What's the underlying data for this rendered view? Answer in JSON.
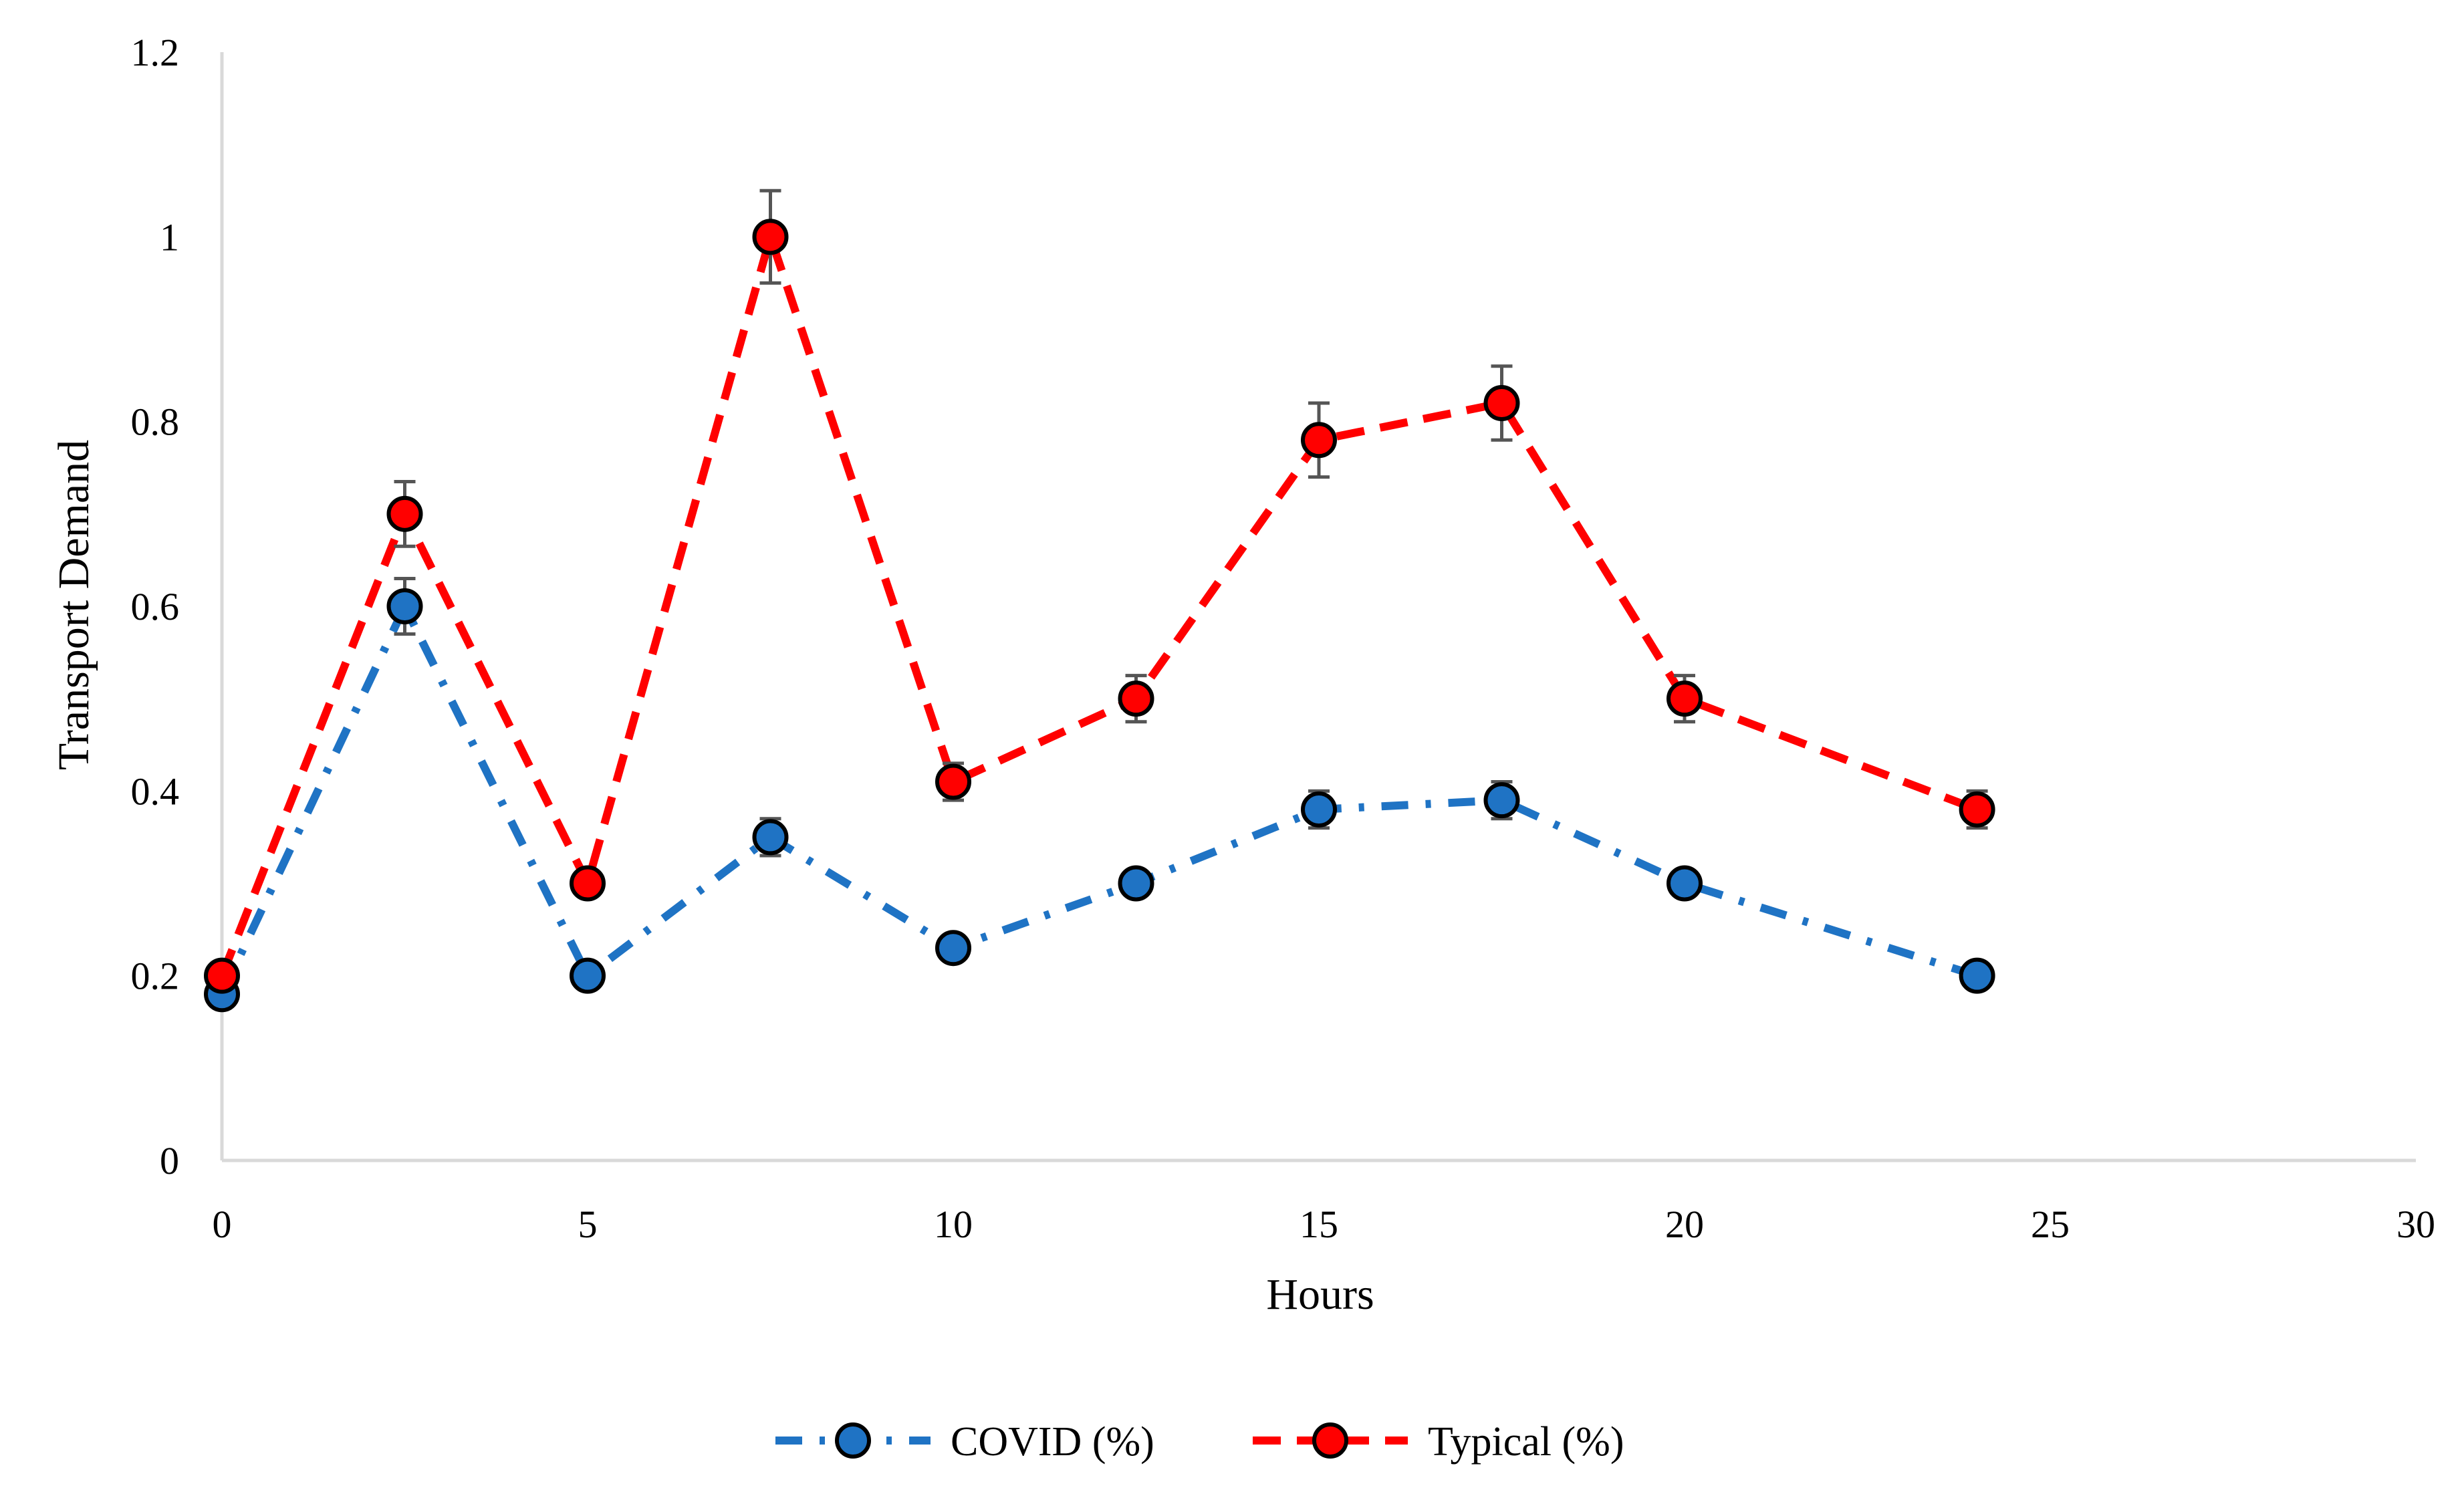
{
  "chart_data": {
    "type": "line",
    "title": "",
    "xlabel": "Hours",
    "ylabel": "Transport Demand",
    "xlim": [
      0,
      30
    ],
    "ylim": [
      0,
      1.2
    ],
    "x_ticks": [
      "0",
      "5",
      "10",
      "15",
      "20",
      "25",
      "30"
    ],
    "y_ticks": [
      "0",
      "0.2",
      "0.4",
      "0.6",
      "0.8",
      "1",
      "1.2"
    ],
    "grid": false,
    "legend_position": "bottom-center",
    "series": [
      {
        "name": "COVID (%)",
        "color": "#1f73c4",
        "line_style": "dash-dot",
        "x": [
          0,
          2.5,
          5,
          7.5,
          10,
          12.5,
          15,
          17.5,
          20,
          24
        ],
        "values": [
          0.18,
          0.6,
          0.2,
          0.35,
          0.23,
          0.3,
          0.38,
          0.39,
          0.3,
          0.2
        ],
        "error": [
          0,
          0.03,
          0,
          0.02,
          0,
          0,
          0.02,
          0.02,
          0,
          0
        ]
      },
      {
        "name": "Typical (%)",
        "color": "#ff0000",
        "line_style": "dash",
        "x": [
          0,
          2.5,
          5,
          7.5,
          10,
          12.5,
          15,
          17.5,
          20,
          24
        ],
        "values": [
          0.2,
          0.7,
          0.3,
          1.0,
          0.41,
          0.5,
          0.78,
          0.82,
          0.5,
          0.38
        ],
        "error": [
          0,
          0.035,
          0,
          0.05,
          0.02,
          0.025,
          0.04,
          0.04,
          0.025,
          0.02
        ]
      }
    ]
  }
}
